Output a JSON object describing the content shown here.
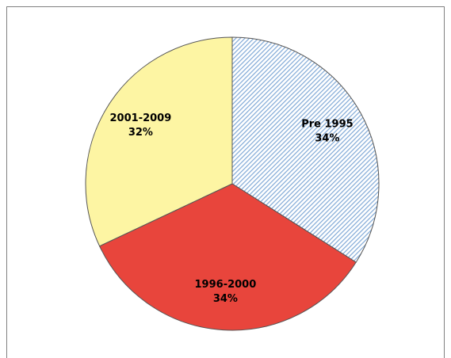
{
  "chart_data": {
    "type": "pie",
    "categories": [
      "Pre 1995",
      "1996-2000",
      "2001-2009"
    ],
    "values": [
      34,
      34,
      32
    ],
    "value_labels": [
      "34%",
      "34%",
      "32%"
    ],
    "colors": [
      "#cfe2f5",
      "#e8453c",
      "#fdf5a3"
    ],
    "hatch": [
      true,
      false,
      false
    ]
  }
}
